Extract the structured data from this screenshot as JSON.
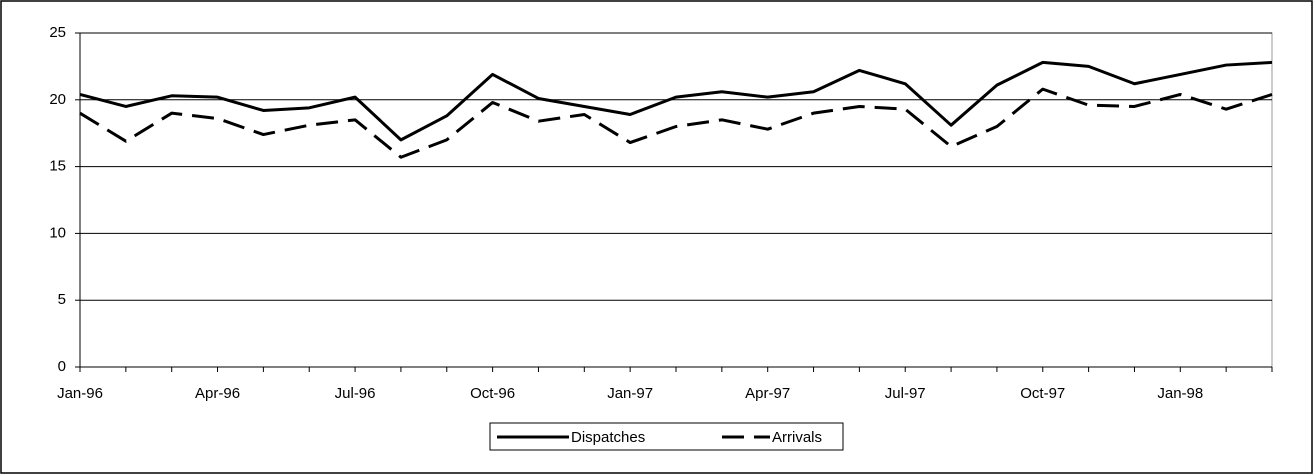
{
  "chart_data": {
    "type": "line",
    "categories": [
      "Jan-96",
      null,
      null,
      "Apr-96",
      null,
      null,
      "Jul-96",
      null,
      null,
      "Oct-96",
      null,
      null,
      "Jan-97",
      null,
      null,
      "Apr-97",
      null,
      null,
      "Jul-97",
      null,
      null,
      "Oct-97",
      null,
      null,
      "Jan-98",
      null,
      null
    ],
    "series": [
      {
        "name": "Dispatches",
        "color": "#000000",
        "dashed": false,
        "values": [
          20.4,
          19.5,
          20.3,
          20.2,
          19.2,
          19.4,
          20.2,
          17.0,
          18.8,
          21.9,
          20.1,
          19.5,
          18.9,
          20.2,
          20.6,
          20.2,
          20.6,
          22.2,
          21.2,
          18.1,
          21.1,
          22.8,
          22.5,
          21.2,
          21.9,
          22.6,
          22.8
        ]
      },
      {
        "name": "Arrivals",
        "color": "#000000",
        "dashed": true,
        "values": [
          19.0,
          16.9,
          19.0,
          18.6,
          17.4,
          18.1,
          18.5,
          15.7,
          17.0,
          19.8,
          18.4,
          18.9,
          16.8,
          18.0,
          18.5,
          17.8,
          19.0,
          19.5,
          19.3,
          16.5,
          18.0,
          20.8,
          19.6,
          19.5,
          20.4,
          19.3,
          20.4
        ]
      }
    ],
    "ylim": [
      0,
      25
    ],
    "yticks": [
      0,
      5,
      10,
      15,
      20,
      25
    ],
    "grid": true,
    "legend": "bottom"
  }
}
